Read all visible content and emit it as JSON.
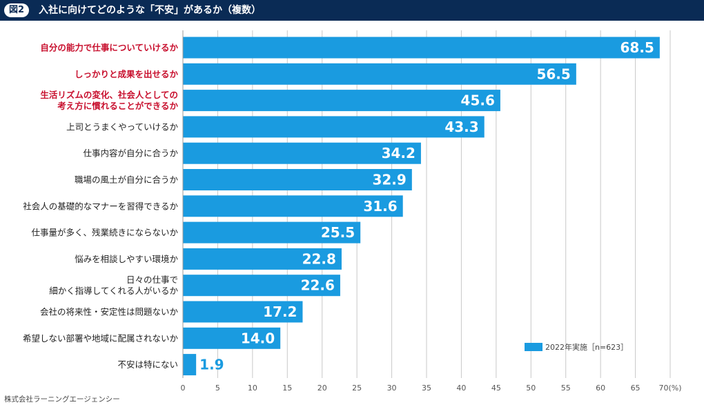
{
  "header": {
    "badge": "図2",
    "title": "入社に向けてどのような「不安」があるか（複数）"
  },
  "chart_data": {
    "type": "bar",
    "orientation": "horizontal",
    "title": "入社に向けてどのような「不安」があるか（複数）",
    "categories": [
      [
        "自分の能力で仕事についていけるか"
      ],
      [
        "しっかりと成果を出せるか"
      ],
      [
        "生活リズムの変化、社会人としての",
        "考え方に慣れることができるか"
      ],
      [
        "上司とうまくやっていけるか"
      ],
      [
        "仕事内容が自分に合うか"
      ],
      [
        "職場の風土が自分に合うか"
      ],
      [
        "社会人の基礎的なマナーを習得できるか"
      ],
      [
        "仕事量が多く、残業続きにならないか"
      ],
      [
        "悩みを相談しやすい環境か"
      ],
      [
        "日々の仕事で",
        "細かく指導してくれる人がいるか"
      ],
      [
        "会社の将来性・安定性は問題ないか"
      ],
      [
        "希望しない部署や地域に配属されないか"
      ],
      [
        "不安は特にない"
      ]
    ],
    "values": [
      68.5,
      56.5,
      45.6,
      43.3,
      34.2,
      32.9,
      31.6,
      25.5,
      22.8,
      22.6,
      17.2,
      14.0,
      1.9
    ],
    "value_labels": [
      "68.5",
      "56.5",
      "45.6",
      "43.3",
      "34.2",
      "32.9",
      "31.6",
      "25.5",
      "22.8",
      "22.6",
      "17.2",
      "14.0",
      "1.9"
    ],
    "highlighted": [
      true,
      true,
      true,
      false,
      false,
      false,
      false,
      false,
      false,
      false,
      false,
      false,
      false
    ],
    "x_ticks": [
      "0",
      "5",
      "10",
      "15",
      "20",
      "25",
      "30",
      "35",
      "40",
      "45",
      "50",
      "55",
      "60",
      "65",
      "70(%)"
    ],
    "xlim": [
      0,
      70
    ],
    "legend": {
      "label": "2022年実施［n=623］",
      "placement": "bottom-right"
    },
    "bar_color": "#1a9be0",
    "highlight_color": "#c8102e",
    "grid": true
  },
  "footer": {
    "credit": "株式会社ラーニングエージェンシー"
  }
}
